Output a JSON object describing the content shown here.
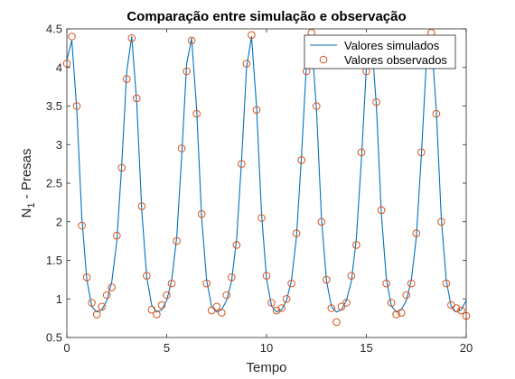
{
  "chart_data": {
    "type": "line",
    "title": "Comparação entre simulação e observação",
    "xlabel": "Tempo",
    "ylabel": {
      "main": "N",
      "sub": "1",
      "rest": " - Presas"
    },
    "xlim": [
      0,
      20
    ],
    "ylim": [
      0.5,
      4.5
    ],
    "xticks": [
      "0",
      "5",
      "10",
      "15",
      "20"
    ],
    "yticks": [
      "0.5",
      "1",
      "1.5",
      "2",
      "2.5",
      "3",
      "3.5",
      "4",
      "4.5"
    ],
    "grid": false,
    "legend_position": "top-right",
    "colors": {
      "simulated": "#0072BD",
      "observed": "#D95319"
    },
    "series": [
      {
        "name": "Valores simulados",
        "style": "line",
        "x": [
          0,
          0.25,
          0.5,
          0.75,
          1.0,
          1.25,
          1.5,
          1.75,
          2.0,
          2.25,
          2.5,
          2.75,
          3.0,
          3.25,
          3.5,
          3.75,
          4.0,
          4.25,
          4.5,
          4.75,
          5.0,
          5.25,
          5.5,
          5.75,
          6.0,
          6.25,
          6.5,
          6.75,
          7.0,
          7.25,
          7.5,
          7.75,
          8.0,
          8.25,
          8.5,
          8.75,
          9.0,
          9.25,
          9.5,
          9.75,
          10.0,
          10.25,
          10.5,
          10.75,
          11.0,
          11.25,
          11.5,
          11.75,
          12.0,
          12.25,
          12.5,
          12.75,
          13.0,
          13.25,
          13.5,
          13.75,
          14.0,
          14.25,
          14.5,
          14.75,
          15.0,
          15.25,
          15.5,
          15.75,
          16.0,
          16.25,
          16.5,
          16.75,
          17.0,
          17.25,
          17.5,
          17.75,
          18.0,
          18.25,
          18.5,
          18.75,
          19.0,
          19.25,
          19.5,
          19.75,
          20.0
        ],
        "values": [
          4.1,
          4.35,
          3.45,
          2.05,
          1.25,
          0.9,
          0.83,
          0.86,
          0.98,
          1.22,
          1.75,
          2.75,
          3.95,
          4.4,
          3.55,
          2.15,
          1.28,
          0.92,
          0.83,
          0.86,
          0.98,
          1.24,
          1.8,
          2.85,
          4.05,
          4.38,
          3.45,
          2.05,
          1.24,
          0.9,
          0.83,
          0.86,
          0.98,
          1.23,
          1.78,
          2.8,
          4.0,
          4.4,
          3.5,
          2.1,
          1.26,
          0.91,
          0.83,
          0.86,
          0.98,
          1.24,
          1.8,
          2.85,
          4.05,
          4.4,
          3.45,
          2.05,
          1.24,
          0.9,
          0.83,
          0.86,
          0.98,
          1.23,
          1.78,
          2.8,
          4.0,
          4.4,
          3.5,
          2.1,
          1.26,
          0.91,
          0.83,
          0.86,
          0.98,
          1.24,
          1.8,
          2.85,
          4.05,
          4.4,
          3.45,
          2.05,
          1.24,
          0.9,
          0.83,
          0.86,
          0.98
        ]
      },
      {
        "name": "Valores observados",
        "style": "markers",
        "x": [
          0,
          0.25,
          0.5,
          0.75,
          1.0,
          1.25,
          1.5,
          1.75,
          2.0,
          2.25,
          2.5,
          2.75,
          3.0,
          3.25,
          3.5,
          3.75,
          4.0,
          4.25,
          4.5,
          4.75,
          5.0,
          5.25,
          5.5,
          5.75,
          6.0,
          6.25,
          6.5,
          6.75,
          7.0,
          7.25,
          7.5,
          7.75,
          8.0,
          8.25,
          8.5,
          8.75,
          9.0,
          9.25,
          9.5,
          9.75,
          10.0,
          10.25,
          10.5,
          10.75,
          11.0,
          11.25,
          11.5,
          11.75,
          12.0,
          12.25,
          12.5,
          12.75,
          13.0,
          13.25,
          13.5,
          13.75,
          14.0,
          14.25,
          14.5,
          14.75,
          15.0,
          15.25,
          15.5,
          15.75,
          16.0,
          16.25,
          16.5,
          16.75,
          17.0,
          17.25,
          17.5,
          17.75,
          18.0,
          18.25,
          18.5,
          18.75,
          19.0,
          19.25,
          19.5,
          19.75,
          20.0
        ],
        "values": [
          4.05,
          4.4,
          3.5,
          1.95,
          1.28,
          0.95,
          0.8,
          0.9,
          1.05,
          1.15,
          1.82,
          2.7,
          3.85,
          4.38,
          3.6,
          2.2,
          1.3,
          0.86,
          0.8,
          0.92,
          1.05,
          1.2,
          1.75,
          2.95,
          3.95,
          4.35,
          3.4,
          2.1,
          1.2,
          0.85,
          0.9,
          0.82,
          1.05,
          1.28,
          1.7,
          2.75,
          4.05,
          4.42,
          3.45,
          2.05,
          1.3,
          0.95,
          0.85,
          0.88,
          1.0,
          1.2,
          1.85,
          2.8,
          3.95,
          4.45,
          3.5,
          2.0,
          1.25,
          0.88,
          0.7,
          0.9,
          0.95,
          1.3,
          1.7,
          2.9,
          3.95,
          4.35,
          3.55,
          2.15,
          1.2,
          0.95,
          0.8,
          0.82,
          1.05,
          1.2,
          1.85,
          2.9,
          4.1,
          4.45,
          3.4,
          2.0,
          1.2,
          0.92,
          0.88,
          0.85,
          0.78
        ]
      }
    ]
  }
}
